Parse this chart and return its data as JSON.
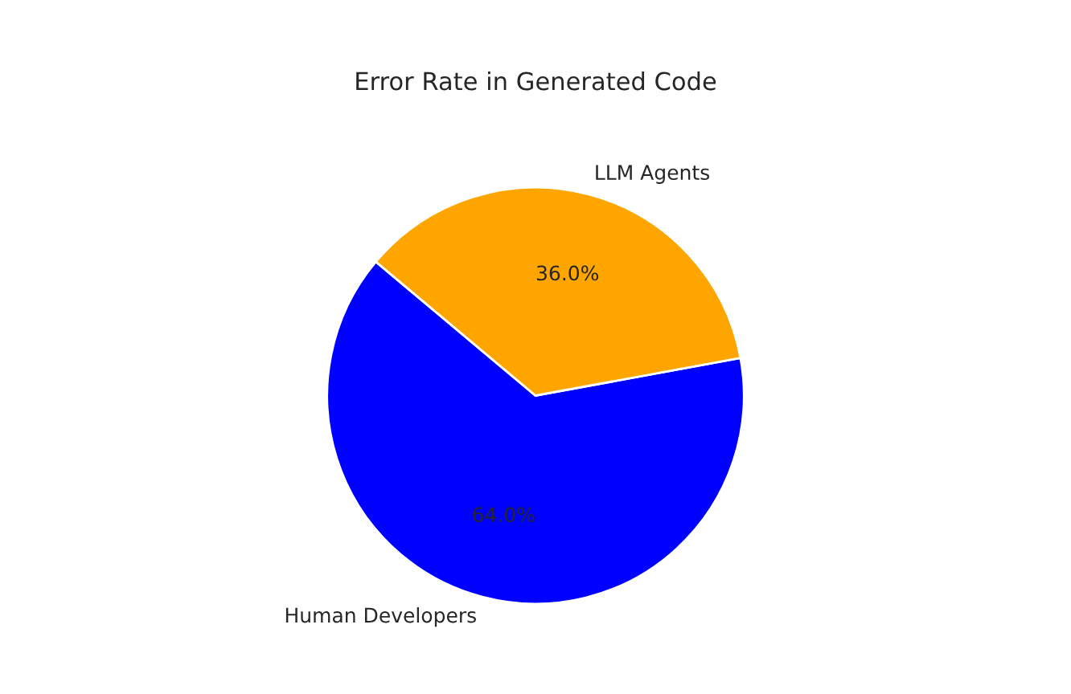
{
  "chart_data": {
    "type": "pie",
    "title": "Error Rate in Generated Code",
    "categories": [
      "Human Developers",
      "LLM Agents"
    ],
    "values": [
      64,
      36
    ],
    "colors": [
      "#0000ff",
      "#ffa500"
    ],
    "value_labels": [
      "64.0%",
      "36.0%"
    ]
  }
}
